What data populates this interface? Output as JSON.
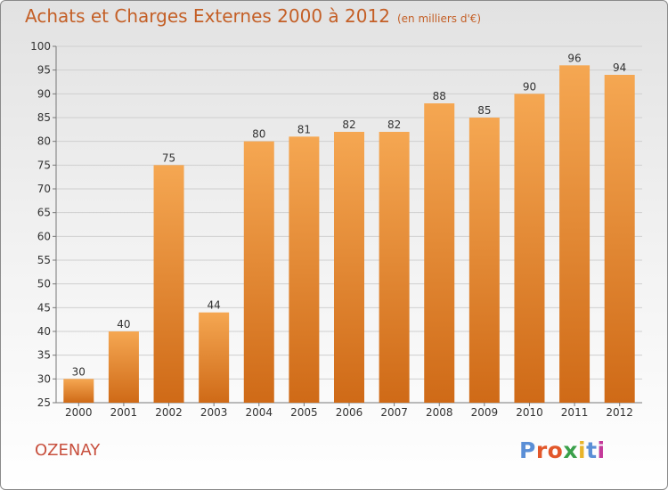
{
  "header": {
    "title": "Achats et Charges Externes 2000 à 2012",
    "unit": "(en milliers d'€)"
  },
  "footer": {
    "town": "OZENAY",
    "logo": "Proxiti",
    "logo_colors": [
      "#5b8fd6",
      "#e2572a",
      "#e2572a",
      "#3aa04a",
      "#e8b42a",
      "#5b8fd6",
      "#c4399a"
    ]
  },
  "colors": {
    "bar_top": "#f5a752",
    "bar_bottom": "#cf6a17",
    "title": "#c45f26",
    "town": "#c8503e"
  },
  "chart_data": {
    "type": "bar",
    "title": "Achats et Charges Externes 2000 à 2012",
    "subtitle": "(en milliers d'€)",
    "categories": [
      "2000",
      "2001",
      "2002",
      "2003",
      "2004",
      "2005",
      "2006",
      "2007",
      "2008",
      "2009",
      "2010",
      "2011",
      "2012"
    ],
    "values": [
      30,
      40,
      75,
      44,
      80,
      81,
      82,
      82,
      88,
      85,
      90,
      96,
      94
    ],
    "ylim": [
      25,
      100
    ],
    "yticks": [
      25,
      30,
      35,
      40,
      45,
      50,
      55,
      60,
      65,
      70,
      75,
      80,
      85,
      90,
      95,
      100
    ],
    "grid": true,
    "data_labels": true
  }
}
